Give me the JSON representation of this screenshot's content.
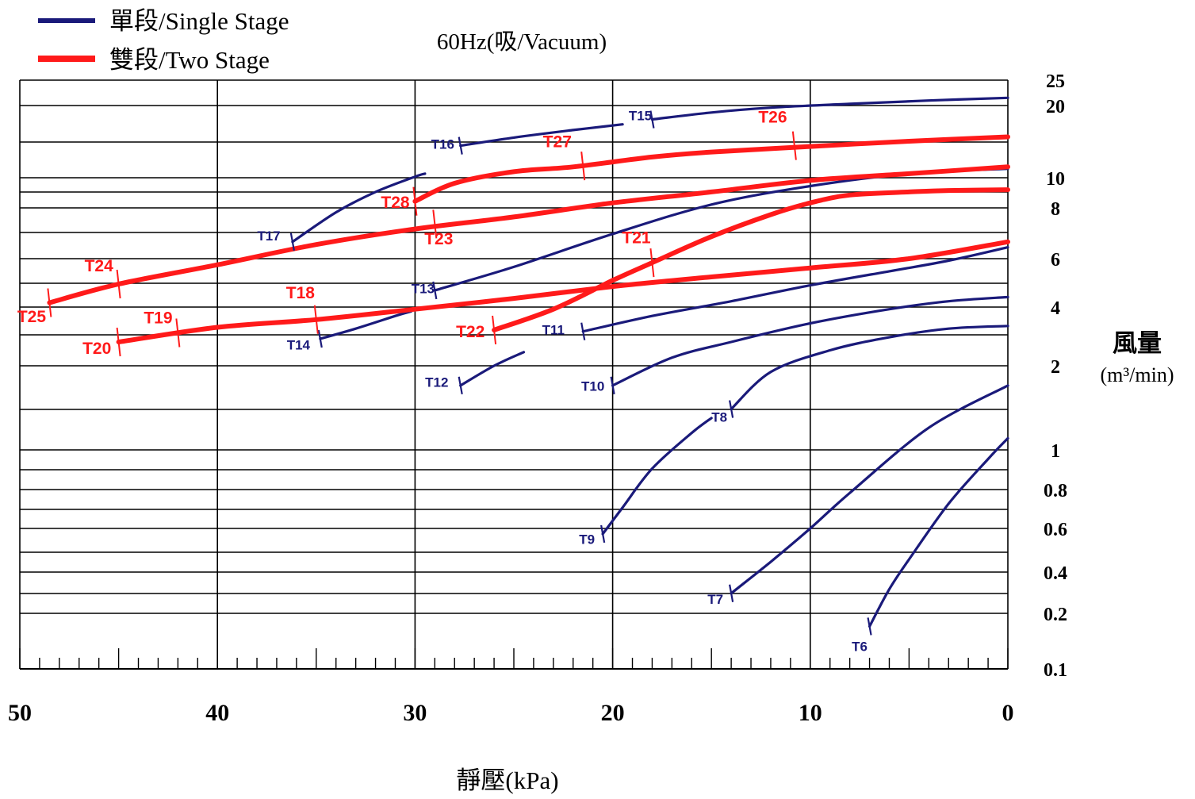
{
  "chart_data": {
    "type": "line",
    "title": "60Hz(吸/Vacuum)",
    "xlabel": "靜壓(kPa)",
    "ylabel": "風量",
    "yunit": "(m³/min)",
    "x_range": [
      50,
      0
    ],
    "x_ticks": [
      "50",
      "40",
      "30",
      "20",
      "10",
      "0"
    ],
    "y_scale": "custom-log",
    "y_ticks": [
      "25",
      "20",
      "10",
      "8",
      "6",
      "4",
      "2",
      "1",
      "0.8",
      "0.6",
      "0.4",
      "0.2",
      "0.1"
    ],
    "legend": {
      "position": "top-left",
      "entries": [
        {
          "label": "單段/Single Stage",
          "color": "#1a1a7a"
        },
        {
          "label": "雙段/Two Stage",
          "color": "#ff1a1a"
        }
      ]
    },
    "colors": {
      "single": "#1a1a7a",
      "two": "#ff1a1a",
      "grid": "#000000"
    },
    "series": [
      {
        "name": "T6",
        "stage": "single",
        "points": [
          [
            7,
            0.17
          ],
          [
            6,
            0.3
          ],
          [
            5,
            0.45
          ],
          [
            3,
            0.72
          ],
          [
            1,
            0.95
          ],
          [
            0,
            1.1
          ]
        ]
      },
      {
        "name": "T7",
        "stage": "single",
        "points": [
          [
            14,
            0.28
          ],
          [
            12,
            0.44
          ],
          [
            10,
            0.6
          ],
          [
            8,
            0.78
          ],
          [
            4,
            1.2
          ],
          [
            0,
            1.7
          ]
        ]
      },
      {
        "name": "T8",
        "stage": "single",
        "points": [
          [
            14,
            1.4
          ],
          [
            12,
            1.9
          ],
          [
            9,
            2.4
          ],
          [
            6,
            2.8
          ],
          [
            3,
            3.1
          ],
          [
            0,
            3.2
          ]
        ]
      },
      {
        "name": "T9",
        "stage": "single",
        "points": [
          [
            20.5,
            0.57
          ],
          [
            19.5,
            0.7
          ],
          [
            18,
            0.9
          ],
          [
            16,
            1.15
          ],
          [
            15,
            1.3
          ]
        ]
      },
      {
        "name": "T10",
        "stage": "single",
        "points": [
          [
            20,
            1.7
          ],
          [
            17,
            2.2
          ],
          [
            14,
            2.65
          ],
          [
            10,
            3.3
          ],
          [
            6,
            3.9
          ],
          [
            3,
            4.2
          ],
          [
            0,
            4.35
          ]
        ]
      },
      {
        "name": "T11",
        "stage": "single",
        "points": [
          [
            21.5,
            3.0
          ],
          [
            18,
            3.6
          ],
          [
            14,
            4.2
          ],
          [
            10,
            4.8
          ],
          [
            6,
            5.4
          ],
          [
            3,
            5.9
          ],
          [
            0,
            6.4
          ]
        ]
      },
      {
        "name": "T12",
        "stage": "single",
        "points": [
          [
            27.7,
            1.7
          ],
          [
            26,
            2.0
          ],
          [
            24.5,
            2.35
          ]
        ]
      },
      {
        "name": "T13",
        "stage": "single",
        "points": [
          [
            29,
            4.6
          ],
          [
            25,
            5.6
          ],
          [
            20,
            6.9
          ],
          [
            15,
            8.2
          ],
          [
            10,
            9.4
          ],
          [
            5,
            10.4
          ],
          [
            0,
            10.9
          ]
        ]
      },
      {
        "name": "T14",
        "stage": "single",
        "points": [
          [
            34.8,
            2.75
          ],
          [
            33,
            3.1
          ],
          [
            31,
            3.6
          ],
          [
            30.2,
            3.8
          ]
        ]
      },
      {
        "name": "T15",
        "stage": "single",
        "points": [
          [
            18,
            17.5
          ],
          [
            15,
            18.7
          ],
          [
            12,
            19.6
          ],
          [
            8,
            20.3
          ],
          [
            4,
            20.9
          ],
          [
            0,
            21.4
          ]
        ]
      },
      {
        "name": "T16",
        "stage": "single",
        "points": [
          [
            27.7,
            13.6
          ],
          [
            25,
            14.7
          ],
          [
            22,
            15.8
          ],
          [
            19.5,
            16.7
          ]
        ]
      },
      {
        "name": "T17",
        "stage": "single",
        "points": [
          [
            36.2,
            6.6
          ],
          [
            34,
            7.8
          ],
          [
            32,
            9.0
          ],
          [
            30,
            10.1
          ],
          [
            29.5,
            10.4
          ]
        ]
      },
      {
        "name": "T18",
        "stage": "two",
        "points": [
          [
            45,
            2.65
          ],
          [
            40,
            3.15
          ],
          [
            35,
            3.45
          ],
          [
            30,
            3.9
          ],
          [
            25,
            4.3
          ],
          [
            20,
            4.75
          ],
          [
            15,
            5.15
          ],
          [
            10,
            5.55
          ],
          [
            5,
            6.0
          ],
          [
            0,
            6.6
          ]
        ]
      },
      {
        "name": "T21",
        "stage": "two",
        "points": [
          [
            26,
            3.05
          ],
          [
            23,
            3.9
          ],
          [
            20,
            5.0
          ],
          [
            18,
            5.8
          ],
          [
            15,
            6.8
          ],
          [
            12,
            7.7
          ],
          [
            10,
            8.3
          ],
          [
            8,
            8.8
          ],
          [
            5,
            9.0
          ],
          [
            3,
            9.1
          ],
          [
            0,
            9.15
          ]
        ]
      },
      {
        "name": "T24",
        "stage": "two",
        "points": [
          [
            48.5,
            4.15
          ],
          [
            45,
            4.85
          ],
          [
            40,
            5.7
          ],
          [
            35,
            6.5
          ],
          [
            30,
            7.1
          ],
          [
            25,
            7.6
          ],
          [
            20,
            8.3
          ],
          [
            15,
            9.0
          ],
          [
            10,
            9.8
          ],
          [
            5,
            10.4
          ],
          [
            0,
            11.1
          ]
        ]
      },
      {
        "name": "T27",
        "stage": "two",
        "points": [
          [
            30,
            8.4
          ],
          [
            28,
            9.6
          ],
          [
            25,
            10.6
          ],
          [
            22,
            11.1
          ],
          [
            18,
            12.2
          ],
          [
            15,
            12.8
          ],
          [
            10,
            13.5
          ],
          [
            5,
            14.2
          ],
          [
            0,
            14.8
          ]
        ]
      }
    ],
    "labels": [
      {
        "text": "T6",
        "stage": "single",
        "x": 7.5,
        "y": 0.125
      },
      {
        "text": "T7",
        "stage": "single",
        "x": 14.8,
        "y": 0.235
      },
      {
        "text": "T8",
        "stage": "single",
        "x": 14.6,
        "y": 1.26
      },
      {
        "text": "T9",
        "stage": "single",
        "x": 21.3,
        "y": 0.52
      },
      {
        "text": "T10",
        "stage": "single",
        "x": 21.0,
        "y": 1.63
      },
      {
        "text": "T11",
        "stage": "single",
        "x": 23.0,
        "y": 2.9
      },
      {
        "text": "T12",
        "stage": "single",
        "x": 28.9,
        "y": 1.68
      },
      {
        "text": "T13",
        "stage": "single",
        "x": 29.6,
        "y": 4.5
      },
      {
        "text": "T14",
        "stage": "single",
        "x": 35.9,
        "y": 2.42
      },
      {
        "text": "T15",
        "stage": "single",
        "x": 18.6,
        "y": 17.4
      },
      {
        "text": "T16",
        "stage": "single",
        "x": 28.6,
        "y": 13.2
      },
      {
        "text": "T17",
        "stage": "single",
        "x": 37.4,
        "y": 6.65
      },
      {
        "text": "T18",
        "stage": "two",
        "x": 35.8,
        "y": 4.3
      },
      {
        "text": "T19",
        "stage": "two",
        "x": 43.0,
        "y": 3.3
      },
      {
        "text": "T20",
        "stage": "two",
        "x": 46.1,
        "y": 2.3
      },
      {
        "text": "T21",
        "stage": "two",
        "x": 18.8,
        "y": 6.55
      },
      {
        "text": "T22",
        "stage": "two",
        "x": 27.2,
        "y": 2.8
      },
      {
        "text": "T23",
        "stage": "two",
        "x": 28.8,
        "y": 6.5
      },
      {
        "text": "T24",
        "stage": "two",
        "x": 46.0,
        "y": 5.4
      },
      {
        "text": "T25",
        "stage": "two",
        "x": 49.4,
        "y": 3.35
      },
      {
        "text": "T26",
        "stage": "two",
        "x": 11.9,
        "y": 17.0
      },
      {
        "text": "T27",
        "stage": "two",
        "x": 22.8,
        "y": 13.4
      },
      {
        "text": "T28",
        "stage": "two",
        "x": 31.0,
        "y": 8.0
      }
    ],
    "markers": [
      {
        "stage": "single",
        "x": 7.0,
        "y": 0.17
      },
      {
        "stage": "single",
        "x": 14.0,
        "y": 0.28
      },
      {
        "stage": "single",
        "x": 14.0,
        "y": 1.4
      },
      {
        "stage": "single",
        "x": 20.5,
        "y": 0.57
      },
      {
        "stage": "single",
        "x": 20.0,
        "y": 1.7
      },
      {
        "stage": "single",
        "x": 21.5,
        "y": 3.0
      },
      {
        "stage": "single",
        "x": 27.7,
        "y": 1.7
      },
      {
        "stage": "single",
        "x": 29.0,
        "y": 4.6
      },
      {
        "stage": "single",
        "x": 34.8,
        "y": 2.75
      },
      {
        "stage": "single",
        "x": 18.0,
        "y": 17.5
      },
      {
        "stage": "single",
        "x": 27.7,
        "y": 13.6
      },
      {
        "stage": "single",
        "x": 36.2,
        "y": 6.6
      },
      {
        "stage": "two",
        "x": 48.5,
        "y": 4.15
      },
      {
        "stage": "two",
        "x": 45.0,
        "y": 4.85
      },
      {
        "stage": "two",
        "x": 45.0,
        "y": 2.65
      },
      {
        "stage": "two",
        "x": 42.0,
        "y": 2.95
      },
      {
        "stage": "two",
        "x": 35.0,
        "y": 3.45
      },
      {
        "stage": "two",
        "x": 26.0,
        "y": 3.05
      },
      {
        "stage": "two",
        "x": 18.0,
        "y": 5.8
      },
      {
        "stage": "two",
        "x": 29.0,
        "y": 7.3
      },
      {
        "stage": "two",
        "x": 30.0,
        "y": 8.4
      },
      {
        "stage": "two",
        "x": 21.5,
        "y": 11.2
      },
      {
        "stage": "two",
        "x": 10.8,
        "y": 13.6
      }
    ]
  }
}
